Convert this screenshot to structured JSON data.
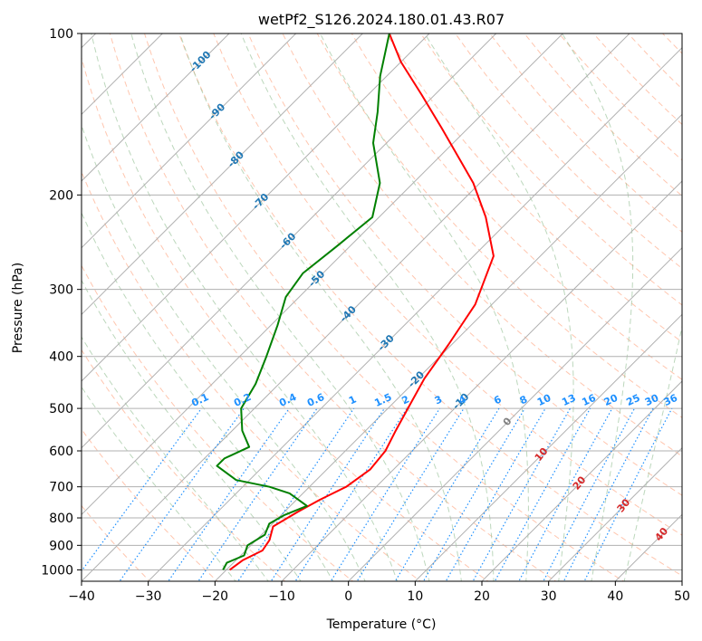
{
  "chart_data": {
    "type": "line",
    "subtype": "skew-T log-P diagram",
    "title": "wetPf2_S126.2024.180.01.43.R07",
    "xlabel": "Temperature (°C)",
    "ylabel": "Pressure (hPa)",
    "xlim": [
      -40,
      50
    ],
    "ylim": [
      1050,
      100
    ],
    "yscale": "log",
    "x_ticks": [
      "−40",
      "−30",
      "−20",
      "−10",
      "0",
      "10",
      "20",
      "30",
      "40",
      "50"
    ],
    "y_ticks": [
      "100",
      "200",
      "300",
      "400",
      "500",
      "600",
      "700",
      "800",
      "900",
      "1000"
    ],
    "grid": true,
    "colors": {
      "temperature": "#ff0000",
      "dewpoint": "#008000",
      "isotherm": "#b0b0b0",
      "dry_adiabat": "#ffa07a",
      "moist_adiabat": "#8fbc8f",
      "mixing_ratio": "#1e90ff",
      "isotherm_label": "#1f77b4",
      "dry_adiabat_label": "#d62728"
    },
    "series": [
      {
        "name": "",
        "color": "#ff0000",
        "points": [
          {
            "t": -19.5,
            "p": 1000
          },
          {
            "t": -19.0,
            "p": 960
          },
          {
            "t": -17.5,
            "p": 920
          },
          {
            "t": -18.0,
            "p": 880
          },
          {
            "t": -19.5,
            "p": 830
          },
          {
            "t": -18.0,
            "p": 780
          },
          {
            "t": -16.5,
            "p": 740
          },
          {
            "t": -14.5,
            "p": 700
          },
          {
            "t": -13.5,
            "p": 650
          },
          {
            "t": -14.0,
            "p": 600
          },
          {
            "t": -15.5,
            "p": 550
          },
          {
            "t": -17.0,
            "p": 500
          },
          {
            "t": -19.0,
            "p": 440
          },
          {
            "t": -20.5,
            "p": 380
          },
          {
            "t": -22.5,
            "p": 320
          },
          {
            "t": -27.0,
            "p": 260
          },
          {
            "t": -34.0,
            "p": 220
          },
          {
            "t": -41.0,
            "p": 190
          },
          {
            "t": -54.0,
            "p": 150
          },
          {
            "t": -62.0,
            "p": 130
          },
          {
            "t": -70.0,
            "p": 113
          },
          {
            "t": -76.0,
            "p": 100
          }
        ]
      },
      {
        "name": "",
        "color": "#008000",
        "points": [
          {
            "t": -20.5,
            "p": 1000
          },
          {
            "t": -21.0,
            "p": 970
          },
          {
            "t": -19.5,
            "p": 940
          },
          {
            "t": -20.5,
            "p": 900
          },
          {
            "t": -19.5,
            "p": 860
          },
          {
            "t": -20.5,
            "p": 820
          },
          {
            "t": -19.5,
            "p": 790
          },
          {
            "t": -17.5,
            "p": 760
          },
          {
            "t": -22.0,
            "p": 720
          },
          {
            "t": -26.0,
            "p": 700
          },
          {
            "t": -32.0,
            "p": 680
          },
          {
            "t": -37.0,
            "p": 640
          },
          {
            "t": -37.0,
            "p": 620
          },
          {
            "t": -35.0,
            "p": 590
          },
          {
            "t": -38.5,
            "p": 550
          },
          {
            "t": -42.0,
            "p": 500
          },
          {
            "t": -43.5,
            "p": 450
          },
          {
            "t": -46.0,
            "p": 400
          },
          {
            "t": -49.0,
            "p": 350
          },
          {
            "t": -52.0,
            "p": 310
          },
          {
            "t": -53.0,
            "p": 280
          },
          {
            "t": -52.0,
            "p": 250
          },
          {
            "t": -51.0,
            "p": 220
          },
          {
            "t": -55.0,
            "p": 190
          },
          {
            "t": -62.0,
            "p": 160
          },
          {
            "t": -66.0,
            "p": 140
          },
          {
            "t": -71.0,
            "p": 120
          },
          {
            "t": -76.0,
            "p": 100
          }
        ]
      }
    ],
    "isotherm_labels": [
      "-100",
      "-90",
      "-80",
      "-70",
      "-60",
      "-50",
      "-40",
      "-30",
      "-20",
      "-10"
    ],
    "mixing_ratio_labels": [
      "0.1",
      "0.2",
      "0.4",
      "0.6",
      "1",
      "1.5",
      "2",
      "3",
      "4",
      "6",
      "8",
      "10",
      "13",
      "16",
      "20",
      "25",
      "30",
      "36"
    ],
    "dry_adiabat_labels": [
      "0",
      "10",
      "20",
      "30",
      "40"
    ]
  }
}
